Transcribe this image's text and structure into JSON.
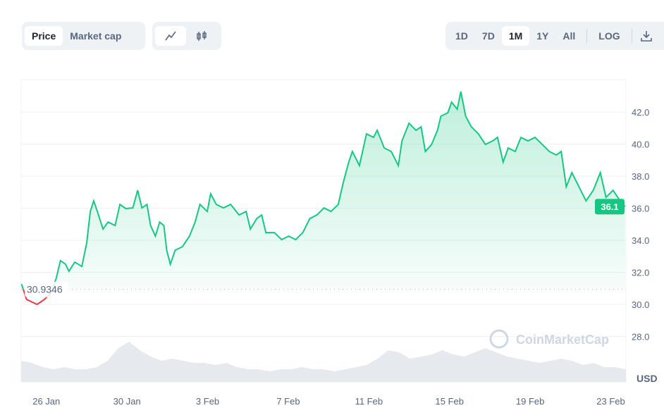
{
  "toolbar": {
    "type_tabs": [
      "Price",
      "Market cap"
    ],
    "active_type": "Price",
    "chart_style_icons": [
      "line-chart-icon",
      "candlestick-icon"
    ],
    "ranges": [
      "1D",
      "7D",
      "1M",
      "1Y",
      "All"
    ],
    "active_range": "1M",
    "log_label": "LOG",
    "download_icon": "download-icon"
  },
  "watermark": "CoinMarketCap",
  "chart_data": {
    "type": "line",
    "title": "",
    "xlabel": "",
    "ylabel": "USD",
    "x_ticks": [
      "26 Jan",
      "30 Jan",
      "3 Feb",
      "7 Feb",
      "11 Feb",
      "15 Feb",
      "19 Feb",
      "23 Feb"
    ],
    "y_ticks": [
      "28.0",
      "30.0",
      "32.0",
      "34.0",
      "36.0",
      "38.0",
      "40.0",
      "42.0"
    ],
    "ylim": [
      26.2,
      43.9
    ],
    "xlim_days": [
      -1.25,
      28.75
    ],
    "reference_value": "30.9346",
    "reference": 30.9346,
    "current_value": "36.1",
    "current": 36.1,
    "colors": {
      "up": "#16c784",
      "down": "#ea3943"
    },
    "series_days": [
      -1.23,
      -0.98,
      -0.46,
      -0.1,
      0.25,
      0.49,
      0.7,
      0.95,
      1.12,
      1.41,
      1.76,
      2.0,
      2.18,
      2.35,
      2.53,
      2.81,
      3.06,
      3.41,
      3.65,
      3.94,
      4.29,
      4.53,
      4.74,
      4.99,
      5.17,
      5.41,
      5.62,
      5.83,
      5.97,
      6.15,
      6.39,
      6.75,
      7.1,
      7.38,
      7.62,
      7.98,
      8.15,
      8.43,
      8.78,
      9.14,
      9.56,
      9.91,
      10.12,
      10.44,
      10.68,
      10.89,
      11.31,
      11.67,
      12.02,
      12.37,
      12.72,
      13.07,
      13.42,
      13.77,
      14.12,
      14.48,
      14.72,
      15.0,
      15.18,
      15.53,
      15.88,
      16.23,
      16.41,
      16.76,
      17.11,
      17.46,
      17.64,
      17.99,
      18.34,
      18.59,
      18.8,
      19.11,
      19.4,
      19.57,
      19.92,
      20.1,
      20.38,
      20.56,
      20.8,
      21.08,
      21.43,
      21.78,
      22.14,
      22.38,
      22.66,
      22.91,
      23.26,
      23.54,
      23.89,
      24.24,
      24.6,
      24.95,
      25.3,
      25.54,
      25.79,
      26.07,
      26.42,
      26.77,
      27.13,
      27.48,
      27.76,
      28.11,
      28.46,
      28.71
    ],
    "series_price": [
      31.27,
      30.31,
      30.0,
      30.31,
      30.75,
      31.63,
      32.73,
      32.51,
      32.07,
      32.64,
      32.37,
      33.82,
      35.8,
      36.46,
      35.8,
      34.7,
      35.14,
      34.92,
      36.24,
      35.98,
      36.02,
      37.12,
      36.02,
      36.24,
      34.92,
      34.26,
      35.14,
      34.92,
      33.38,
      32.51,
      33.38,
      33.6,
      34.26,
      35.14,
      36.24,
      35.8,
      36.9,
      36.24,
      36.02,
      36.24,
      35.58,
      35.8,
      34.7,
      35.36,
      35.58,
      34.48,
      34.48,
      34.04,
      34.26,
      34.04,
      34.48,
      35.36,
      35.58,
      36.02,
      35.8,
      36.24,
      37.56,
      38.88,
      39.54,
      38.66,
      40.64,
      40.42,
      40.86,
      39.76,
      39.54,
      38.66,
      40.2,
      41.3,
      40.86,
      41.08,
      39.54,
      39.98,
      40.86,
      41.74,
      41.96,
      42.62,
      42.18,
      43.27,
      41.74,
      41.08,
      40.64,
      39.98,
      40.2,
      40.42,
      38.88,
      39.76,
      39.54,
      40.42,
      40.2,
      40.42,
      39.98,
      39.54,
      39.32,
      39.54,
      37.34,
      38.22,
      37.34,
      36.46,
      37.12,
      38.22,
      36.68,
      37.12,
      36.46,
      36.1
    ],
    "volume_relative": [
      0.5,
      0.45,
      0.35,
      0.3,
      0.35,
      0.3,
      0.3,
      0.35,
      0.5,
      0.8,
      0.95,
      0.75,
      0.6,
      0.5,
      0.55,
      0.5,
      0.45,
      0.45,
      0.4,
      0.45,
      0.35,
      0.3,
      0.3,
      0.25,
      0.3,
      0.3,
      0.35,
      0.3,
      0.3,
      0.25,
      0.3,
      0.35,
      0.4,
      0.55,
      0.75,
      0.7,
      0.55,
      0.6,
      0.65,
      0.75,
      0.65,
      0.6,
      0.7,
      0.8,
      0.7,
      0.6,
      0.55,
      0.5,
      0.45,
      0.5,
      0.55,
      0.5,
      0.4,
      0.45,
      0.35,
      0.35,
      0.3
    ]
  }
}
